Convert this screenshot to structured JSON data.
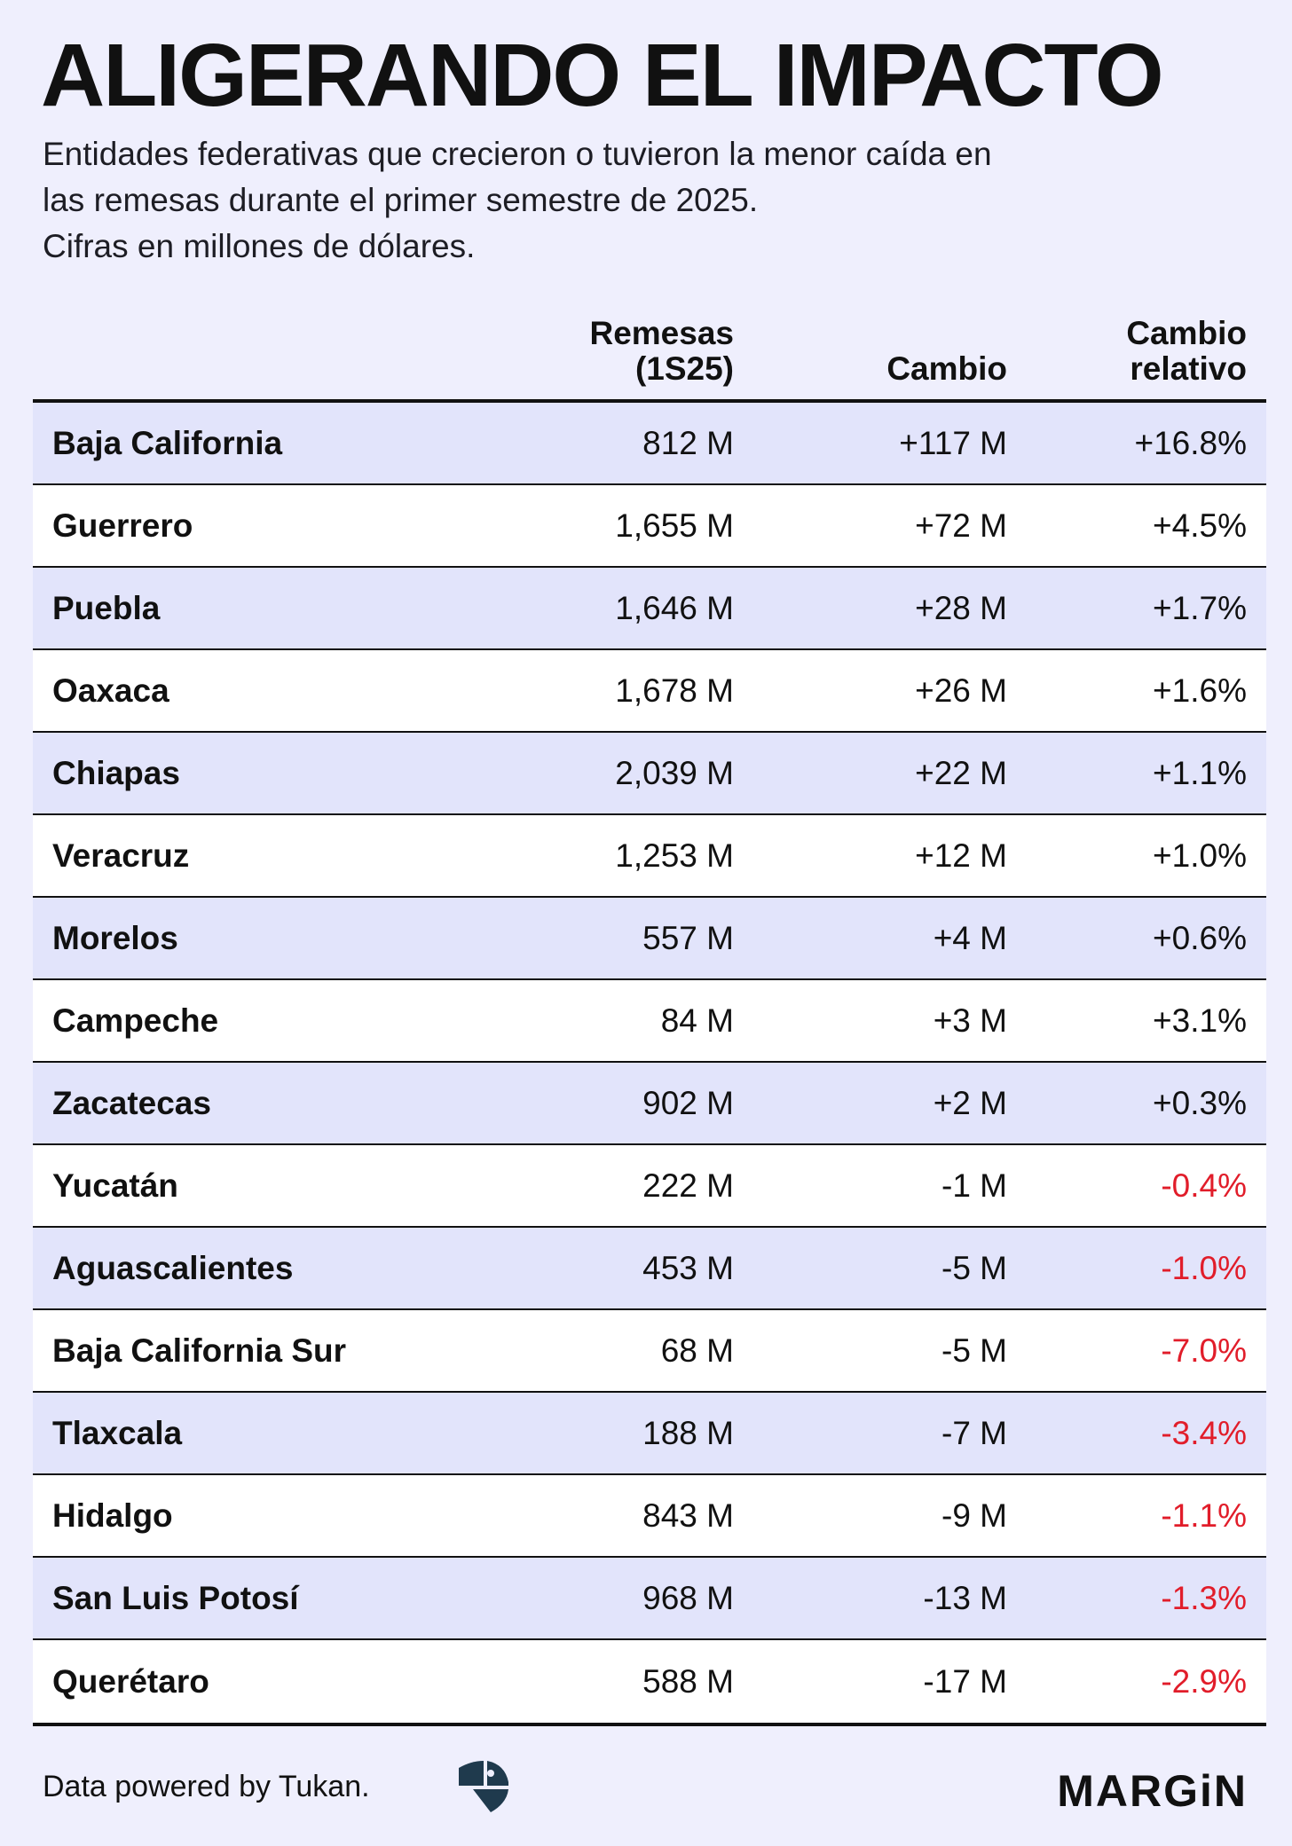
{
  "title": "ALIGERANDO EL IMPACTO",
  "subtitle": [
    "Entidades federativas que crecieron o tuvieron la menor caída en",
    "las remesas durante el primer semestre de 2025.",
    "Cifras en millones de dólares."
  ],
  "columns": {
    "remesas": [
      "Remesas",
      "(1S25)"
    ],
    "cambio": [
      "Cambio"
    ],
    "relativo": [
      "Cambio",
      "relativo"
    ]
  },
  "colors": {
    "background": "#efeffd",
    "row_alt": "#e2e4fb",
    "negative": "#e11d2a"
  },
  "chart_data": {
    "type": "table",
    "title": "ALIGERANDO EL IMPACTO",
    "headers": [
      "",
      "Remesas (1S25)",
      "Cambio",
      "Cambio relativo"
    ],
    "rows": [
      {
        "state": "Baja California",
        "remesas": "812 M",
        "cambio": "+117 M",
        "relativo": "+16.8%",
        "negative": false
      },
      {
        "state": "Guerrero",
        "remesas": "1,655 M",
        "cambio": "+72 M",
        "relativo": "+4.5%",
        "negative": false
      },
      {
        "state": "Puebla",
        "remesas": "1,646 M",
        "cambio": "+28 M",
        "relativo": "+1.7%",
        "negative": false
      },
      {
        "state": "Oaxaca",
        "remesas": "1,678 M",
        "cambio": "+26 M",
        "relativo": "+1.6%",
        "negative": false
      },
      {
        "state": "Chiapas",
        "remesas": "2,039 M",
        "cambio": "+22 M",
        "relativo": "+1.1%",
        "negative": false
      },
      {
        "state": "Veracruz",
        "remesas": "1,253 M",
        "cambio": "+12 M",
        "relativo": "+1.0%",
        "negative": false
      },
      {
        "state": "Morelos",
        "remesas": "557 M",
        "cambio": "+4 M",
        "relativo": "+0.6%",
        "negative": false
      },
      {
        "state": "Campeche",
        "remesas": "84 M",
        "cambio": "+3 M",
        "relativo": "+3.1%",
        "negative": false
      },
      {
        "state": "Zacatecas",
        "remesas": "902 M",
        "cambio": "+2 M",
        "relativo": "+0.3%",
        "negative": false
      },
      {
        "state": "Yucatán",
        "remesas": "222 M",
        "cambio": "-1 M",
        "relativo": "-0.4%",
        "negative": true
      },
      {
        "state": "Aguascalientes",
        "remesas": "453 M",
        "cambio": "-5 M",
        "relativo": "-1.0%",
        "negative": true
      },
      {
        "state": "Baja California Sur",
        "remesas": "68 M",
        "cambio": "-5 M",
        "relativo": "-7.0%",
        "negative": true
      },
      {
        "state": "Tlaxcala",
        "remesas": "188 M",
        "cambio": "-7 M",
        "relativo": "-3.4%",
        "negative": true
      },
      {
        "state": "Hidalgo",
        "remesas": "843 M",
        "cambio": "-9 M",
        "relativo": "-1.1%",
        "negative": true
      },
      {
        "state": "San Luis Potosí",
        "remesas": "968 M",
        "cambio": "-13 M",
        "relativo": "-1.3%",
        "negative": true
      },
      {
        "state": "Querétaro",
        "remesas": "588 M",
        "cambio": "-17 M",
        "relativo": "-2.9%",
        "negative": true
      }
    ]
  },
  "footer": {
    "source": "Data powered by Tukan.",
    "source_icon": "tukan-logo-icon",
    "brand": "MARGiN"
  }
}
